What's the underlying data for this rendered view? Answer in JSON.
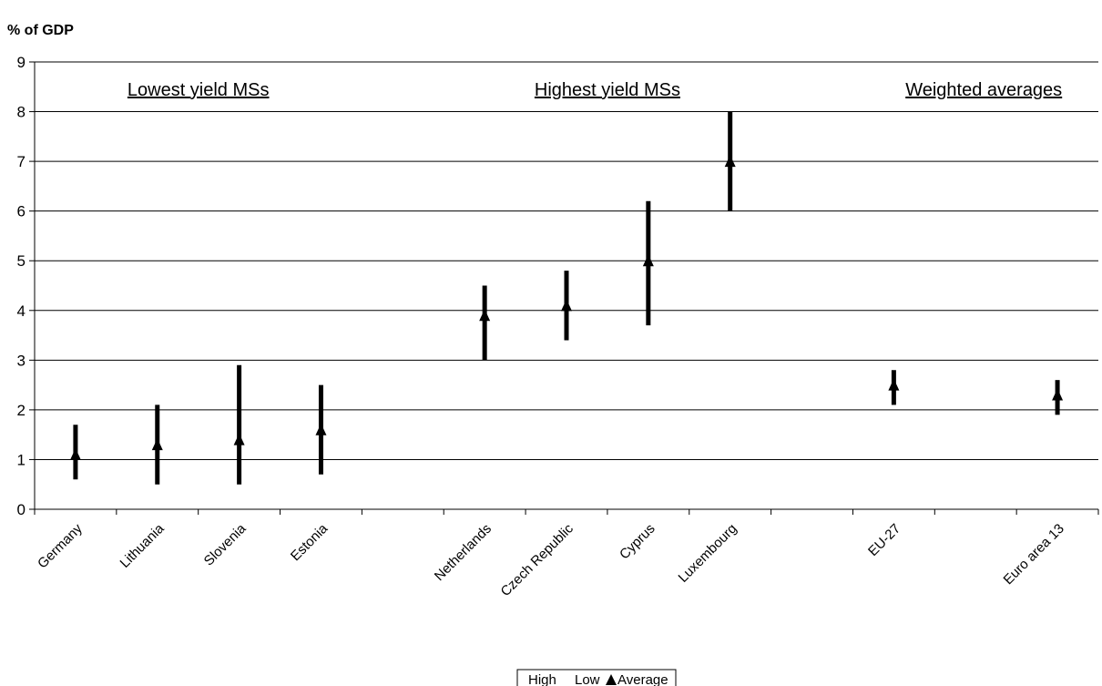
{
  "chart_data": {
    "type": "high-low-average",
    "ylabel": "% of GDP",
    "ylim": [
      0,
      9
    ],
    "yticks": [
      "0",
      "1",
      "2",
      "3",
      "4",
      "5",
      "6",
      "7",
      "8",
      "9"
    ],
    "grid": true,
    "legend_position": "bottom-center",
    "legend": {
      "high": "High",
      "low": "Low",
      "average": "Average"
    },
    "group_headers": [
      "Lowest yield MSs",
      "Highest yield MSs",
      "Weighted averages"
    ],
    "categories": [
      "Germany",
      "Lithuania",
      "Slovenia",
      "Estonia",
      "",
      "Netherlands",
      "Czech Republic",
      "Cyprus",
      "Luxembourg",
      "",
      "EU-27",
      "",
      "Euro area 13"
    ],
    "points": [
      {
        "category": "Germany",
        "high": 1.7,
        "low": 0.6,
        "average": 1.1
      },
      {
        "category": "Lithuania",
        "high": 2.1,
        "low": 0.5,
        "average": 1.3
      },
      {
        "category": "Slovenia",
        "high": 2.9,
        "low": 0.5,
        "average": 1.4
      },
      {
        "category": "Estonia",
        "high": 2.5,
        "low": 0.7,
        "average": 1.6
      },
      {
        "category": "Netherlands",
        "high": 4.5,
        "low": 3.0,
        "average": 3.9
      },
      {
        "category": "Czech Republic",
        "high": 4.8,
        "low": 3.4,
        "average": 4.1
      },
      {
        "category": "Cyprus",
        "high": 6.2,
        "low": 3.7,
        "average": 5.0
      },
      {
        "category": "Luxembourg",
        "high": 8.0,
        "low": 6.0,
        "average": 7.0
      },
      {
        "category": "EU-27",
        "high": 2.8,
        "low": 2.1,
        "average": 2.5
      },
      {
        "category": "Euro area 13",
        "high": 2.6,
        "low": 1.9,
        "average": 2.3
      }
    ]
  }
}
